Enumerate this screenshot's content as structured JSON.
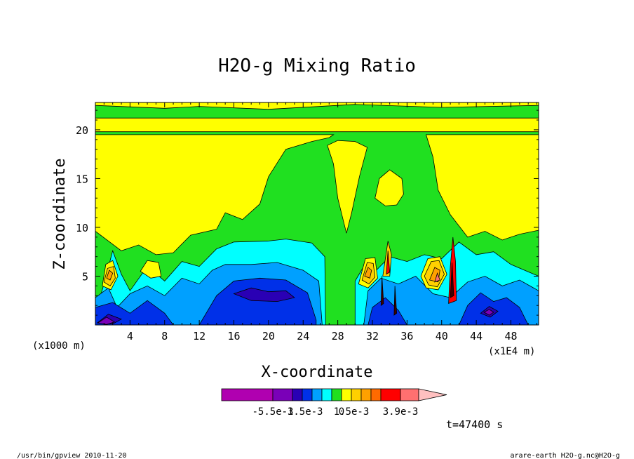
{
  "figure": {
    "footer_left": "/usr/bin/gpview  2010-11-20",
    "footer_right": "arare-earth_H2O-g.nc@H2O-g",
    "time_label": "t=47400 s"
  },
  "chart_data": {
    "type": "heatmap",
    "title": "H2O-g Mixing Ratio",
    "xlabel": "X-coordinate",
    "ylabel": "Z-coordinate",
    "x_unit_label": "(x1E4 m)",
    "y_unit_label": "(x1000 m)",
    "xlim": [
      0,
      51.2
    ],
    "ylim": [
      0,
      22.8
    ],
    "x_ticks": [
      4,
      8,
      12,
      16,
      20,
      24,
      28,
      32,
      36,
      40,
      44,
      48
    ],
    "y_ticks": [
      5,
      10,
      15,
      20
    ],
    "grid": false,
    "colorbar": {
      "colors": [
        "#b000b0",
        "#7a00b8",
        "#2a00b4",
        "#0030e8",
        "#00a0ff",
        "#00ffff",
        "#20e020",
        "#ffff00",
        "#ffd000",
        "#ffa000",
        "#ff6a00",
        "#ff0000",
        "#ff7070",
        "#ffc0c0"
      ],
      "labels": [
        "-5.5e-3",
        "-1.5e-3",
        "0",
        "1.5e-3",
        "3.9e-3"
      ],
      "extend": "max"
    },
    "regions": [
      {
        "level": "green",
        "color": "#20e020",
        "polygons": [
          [
            [
              0,
              0
            ],
            [
              51.2,
              0
            ],
            [
              51.2,
              22.8
            ],
            [
              0,
              22.8
            ]
          ]
        ]
      },
      {
        "level": "yellow",
        "color": "#ffff00",
        "polygons": [
          [
            [
              0,
              19.8
            ],
            [
              51.2,
              19.8
            ],
            [
              51.2,
              21.2
            ],
            [
              0,
              21.2
            ]
          ],
          [
            [
              0,
              22.5
            ],
            [
              8,
              22.2
            ],
            [
              12,
              22.4
            ],
            [
              20,
              22.1
            ],
            [
              30,
              22.6
            ],
            [
              40,
              22.3
            ],
            [
              51.2,
              22.5
            ],
            [
              51.2,
              22.8
            ],
            [
              0,
              22.8
            ]
          ],
          [
            [
              0,
              9.6
            ],
            [
              3,
              7.6
            ],
            [
              5,
              8.2
            ],
            [
              7,
              7.2
            ],
            [
              9,
              7.4
            ],
            [
              11,
              9.2
            ],
            [
              14,
              9.8
            ],
            [
              15,
              11.5
            ],
            [
              17,
              10.8
            ],
            [
              19,
              12.4
            ],
            [
              20,
              15.2
            ],
            [
              22,
              18.0
            ],
            [
              25,
              18.8
            ],
            [
              27,
              19.2
            ],
            [
              27.5,
              19.5
            ],
            [
              0,
              19.5
            ]
          ],
          [
            [
              26.8,
              18.4
            ],
            [
              27.5,
              16.5
            ],
            [
              28,
              13.0
            ],
            [
              29,
              9.4
            ],
            [
              29.6,
              11.5
            ],
            [
              30.5,
              15.2
            ],
            [
              31.4,
              18.2
            ],
            [
              30,
              18.8
            ],
            [
              28,
              18.9
            ]
          ],
          [
            [
              32.3,
              13.0
            ],
            [
              33.5,
              12.2
            ],
            [
              34.8,
              12.3
            ],
            [
              35.6,
              13.4
            ],
            [
              35.4,
              15.0
            ],
            [
              34,
              15.9
            ],
            [
              32.8,
              15.0
            ]
          ],
          [
            [
              38.2,
              19.5
            ],
            [
              39,
              17.2
            ],
            [
              39.6,
              13.8
            ],
            [
              41,
              11.3
            ],
            [
              43,
              9.0
            ],
            [
              45,
              9.6
            ],
            [
              47,
              8.7
            ],
            [
              49,
              9.3
            ],
            [
              51.2,
              9.7
            ],
            [
              51.2,
              19.5
            ]
          ]
        ]
      },
      {
        "level": "cyan",
        "color": "#00ffff",
        "polygons": [
          [
            [
              0,
              1.2
            ],
            [
              1,
              4.2
            ],
            [
              2,
              7.6
            ],
            [
              3,
              5.2
            ],
            [
              4,
              3.5
            ],
            [
              6,
              6.0
            ],
            [
              8,
              4.5
            ],
            [
              10,
              6.5
            ],
            [
              12,
              6.0
            ],
            [
              14,
              7.8
            ],
            [
              16,
              8.5
            ],
            [
              20,
              8.6
            ],
            [
              22,
              8.8
            ],
            [
              25,
              8.4
            ],
            [
              26.5,
              7.0
            ],
            [
              26.6,
              0
            ],
            [
              0,
              0
            ]
          ],
          [
            [
              30,
              4.5
            ],
            [
              31,
              6.0
            ],
            [
              32,
              5.2
            ],
            [
              34,
              7.0
            ],
            [
              36,
              6.5
            ],
            [
              38,
              7.2
            ],
            [
              40,
              6.8
            ],
            [
              42,
              8.5
            ],
            [
              44,
              7.2
            ],
            [
              46,
              7.5
            ],
            [
              48,
              6.2
            ],
            [
              51.2,
              5.0
            ],
            [
              51.2,
              0
            ],
            [
              30,
              0
            ]
          ]
        ]
      },
      {
        "level": "light-blue",
        "color": "#00a0ff",
        "polygons": [
          [
            [
              0,
              0
            ],
            [
              0,
              2.8
            ],
            [
              1.5,
              3.8
            ],
            [
              2.5,
              1.8
            ],
            [
              4,
              3.2
            ],
            [
              6,
              4.0
            ],
            [
              8,
              3.0
            ],
            [
              10,
              4.8
            ],
            [
              12,
              4.2
            ],
            [
              13.5,
              5.6
            ],
            [
              15,
              6.2
            ],
            [
              18,
              6.2
            ],
            [
              21,
              6.4
            ],
            [
              24,
              5.6
            ],
            [
              25.8,
              4.5
            ],
            [
              26.2,
              0
            ]
          ],
          [
            [
              31,
              0
            ],
            [
              31.5,
              3.5
            ],
            [
              33,
              4.8
            ],
            [
              35,
              4.2
            ],
            [
              37,
              5.0
            ],
            [
              39,
              3.2
            ],
            [
              41,
              2.8
            ],
            [
              43,
              4.4
            ],
            [
              45,
              5.0
            ],
            [
              47,
              4.0
            ],
            [
              49,
              4.6
            ],
            [
              51.2,
              3.5
            ],
            [
              51.2,
              0
            ]
          ]
        ]
      },
      {
        "level": "blue",
        "color": "#0030e8",
        "polygons": [
          [
            [
              0,
              0
            ],
            [
              0,
              1.8
            ],
            [
              2,
              2.3
            ],
            [
              4,
              1.2
            ],
            [
              6,
              2.5
            ],
            [
              8,
              1.2
            ],
            [
              9,
              0
            ]
          ],
          [
            [
              12,
              0
            ],
            [
              13,
              1.5
            ],
            [
              14,
              3.0
            ],
            [
              16,
              4.5
            ],
            [
              19,
              4.8
            ],
            [
              22,
              4.6
            ],
            [
              24.5,
              3.3
            ],
            [
              25.5,
              0.5
            ],
            [
              25.5,
              0
            ]
          ],
          [
            [
              31.5,
              0
            ],
            [
              32,
              1.8
            ],
            [
              33.5,
              2.8
            ],
            [
              35,
              1.5
            ],
            [
              36,
              0
            ]
          ],
          [
            [
              42,
              0
            ],
            [
              43,
              2.0
            ],
            [
              44.5,
              3.3
            ],
            [
              46,
              2.4
            ],
            [
              47.5,
              2.8
            ],
            [
              49,
              1.8
            ],
            [
              50,
              0
            ]
          ]
        ]
      },
      {
        "level": "dark-blue",
        "color": "#2a00b4",
        "polygons": [
          [
            [
              16,
              3.2
            ],
            [
              18,
              3.8
            ],
            [
              20,
              3.4
            ],
            [
              22,
              3.5
            ],
            [
              23,
              2.8
            ],
            [
              21,
              2.4
            ],
            [
              18,
              2.5
            ]
          ],
          [
            [
              0.2,
              0.2
            ],
            [
              1.5,
              1.1
            ],
            [
              3,
              0.6
            ],
            [
              2,
              0.1
            ]
          ],
          [
            [
              44.5,
              1.2
            ],
            [
              45.5,
              1.9
            ],
            [
              46.5,
              1.4
            ],
            [
              45.6,
              0.8
            ]
          ]
        ]
      },
      {
        "level": "violet",
        "color": "#7a00b8",
        "polygons": [
          [
            [
              0.3,
              0.2
            ],
            [
              1.3,
              0.8
            ],
            [
              2.2,
              0.3
            ],
            [
              1.3,
              0.05
            ]
          ],
          [
            [
              44.9,
              1.3
            ],
            [
              45.5,
              1.6
            ],
            [
              46.0,
              1.3
            ],
            [
              45.5,
              1.0
            ]
          ]
        ]
      },
      {
        "level": "light-yellow-cells",
        "color": "#ffff00",
        "polygons": [
          [
            [
              0.8,
              4.0
            ],
            [
              1.2,
              6.2
            ],
            [
              2.0,
              6.6
            ],
            [
              2.6,
              5.0
            ],
            [
              1.8,
              3.6
            ]
          ],
          [
            [
              5.2,
              5.5
            ],
            [
              6.0,
              6.6
            ],
            [
              7.3,
              6.4
            ],
            [
              7.6,
              5.0
            ],
            [
              6.4,
              4.8
            ]
          ],
          [
            [
              30.4,
              4.2
            ],
            [
              31.2,
              6.8
            ],
            [
              32.3,
              6.9
            ],
            [
              32.6,
              4.8
            ],
            [
              31.5,
              3.8
            ]
          ],
          [
            [
              37.6,
              5.0
            ],
            [
              38.4,
              6.8
            ],
            [
              39.8,
              7.0
            ],
            [
              40.6,
              5.2
            ],
            [
              39.6,
              3.6
            ],
            [
              38.2,
              3.8
            ]
          ]
        ]
      },
      {
        "level": "gold",
        "color": "#ffd000",
        "polygons": [
          [
            [
              1.0,
              4.4
            ],
            [
              1.4,
              5.8
            ],
            [
              2.1,
              6.0
            ],
            [
              2.3,
              4.8
            ],
            [
              1.7,
              4.0
            ]
          ],
          [
            [
              30.8,
              4.6
            ],
            [
              31.4,
              6.4
            ],
            [
              32.1,
              6.3
            ],
            [
              32.3,
              4.9
            ],
            [
              31.6,
              4.2
            ]
          ],
          [
            [
              33.2,
              5.0
            ],
            [
              33.8,
              8.6
            ],
            [
              34.2,
              7.2
            ],
            [
              34.0,
              5.0
            ]
          ],
          [
            [
              38.0,
              5.0
            ],
            [
              38.8,
              6.5
            ],
            [
              39.7,
              6.6
            ],
            [
              40.3,
              5.2
            ],
            [
              39.5,
              3.9
            ],
            [
              38.5,
              4.1
            ]
          ]
        ]
      },
      {
        "level": "orange",
        "color": "#ffa000",
        "polygons": [
          [
            [
              1.3,
              4.8
            ],
            [
              1.6,
              5.6
            ],
            [
              2.0,
              5.3
            ],
            [
              1.7,
              4.6
            ]
          ],
          [
            [
              31.1,
              5.0
            ],
            [
              31.5,
              5.9
            ],
            [
              31.9,
              5.6
            ],
            [
              31.7,
              4.8
            ]
          ],
          [
            [
              38.6,
              4.6
            ],
            [
              39.2,
              5.9
            ],
            [
              39.8,
              5.6
            ],
            [
              39.6,
              4.4
            ]
          ]
        ]
      },
      {
        "level": "red",
        "color": "#ff0000",
        "polygons": [
          [
            [
              40.8,
              2.2
            ],
            [
              41.0,
              6.0
            ],
            [
              41.3,
              9.0
            ],
            [
              41.6,
              6.5
            ],
            [
              41.7,
              2.5
            ]
          ],
          [
            [
              33.6,
              5.2
            ],
            [
              33.8,
              7.6
            ],
            [
              34.0,
              5.4
            ]
          ]
        ]
      },
      {
        "level": "dark",
        "color": "#400000",
        "polygons": [
          [
            [
              41.0,
              2.8
            ],
            [
              41.2,
              6.4
            ],
            [
              41.4,
              3.0
            ]
          ],
          [
            [
              33.0,
              2.0
            ],
            [
              33.1,
              5.0
            ],
            [
              33.3,
              2.2
            ]
          ],
          [
            [
              34.5,
              1.0
            ],
            [
              34.6,
              4.0
            ],
            [
              34.8,
              1.2
            ]
          ]
        ]
      },
      {
        "level": "pink",
        "color": "#ff7070",
        "polygons": [
          [
            [
              39.2,
              4.4
            ],
            [
              39.5,
              5.3
            ],
            [
              39.8,
              4.6
            ]
          ]
        ]
      }
    ]
  }
}
